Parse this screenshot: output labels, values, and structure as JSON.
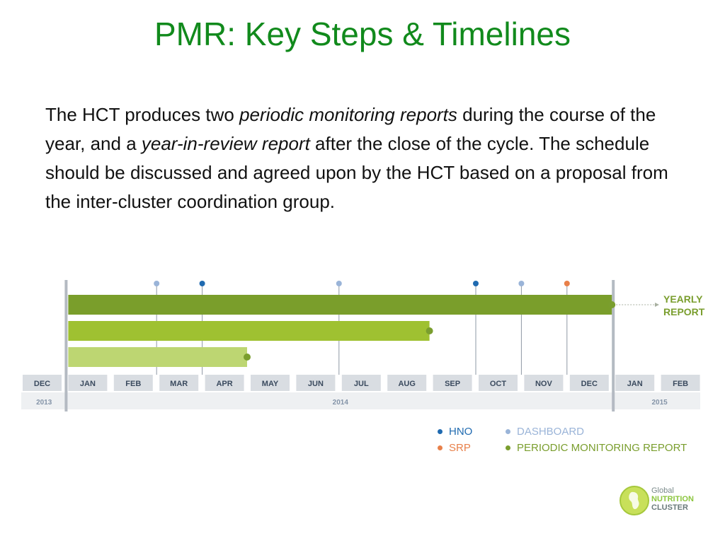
{
  "slide": {
    "title": "PMR: Key Steps & Timelines",
    "paragraph": {
      "t1": "The HCT produces two ",
      "t2": "periodic monitoring reports",
      "t3": " during the course of the year, and a ",
      "t4": "year-in-review report",
      "t5": " after the close of the cycle. The schedule should be discussed and agreed upon by the HCT based on a proposal from the inter-cluster coordination group."
    }
  },
  "timeline": {
    "months": [
      "DEC",
      "JAN",
      "FEB",
      "MAR",
      "APR",
      "MAY",
      "JUN",
      "JUL",
      "AUG",
      "SEP",
      "OCT",
      "NOV",
      "DEC",
      "JAN",
      "FEB"
    ],
    "years": [
      {
        "label": "2013",
        "start_month": 0,
        "end_month": 0
      },
      {
        "label": "2014",
        "start_month": 1,
        "end_month": 12
      },
      {
        "label": "2015",
        "start_month": 13,
        "end_month": 14
      }
    ],
    "bars": [
      {
        "name": "pmr-bar-1",
        "start": 1,
        "end": 13,
        "color": "#7a9e2b"
      },
      {
        "name": "pmr-bar-2",
        "start": 1,
        "end": 9,
        "color": "#9fc131"
      },
      {
        "name": "pmr-bar-3",
        "start": 1,
        "end": 5,
        "color": "#bdd672"
      }
    ],
    "milestones": [
      {
        "type": "dashboard",
        "position": 3
      },
      {
        "type": "hno",
        "position": 4
      },
      {
        "type": "dashboard",
        "position": 7
      },
      {
        "type": "hno",
        "position": 10
      },
      {
        "type": "dashboard",
        "position": 11
      },
      {
        "type": "srp",
        "position": 12
      }
    ],
    "yearly_report": {
      "line1": "YEARLY",
      "line2": "REPORT"
    }
  },
  "legend": {
    "hno": {
      "label": "HNO",
      "color": "#1f6ab0"
    },
    "dashboard": {
      "label": "DASHBOARD",
      "color": "#9ab4d8"
    },
    "srp": {
      "label": "SRP",
      "color": "#e8804a"
    },
    "pmr": {
      "label": "PERIODIC MONITORING REPORT",
      "color": "#7a9e2e"
    }
  },
  "logo": {
    "line1": "Global",
    "line2": "NUTRITION",
    "line3": "CLUSTER"
  }
}
